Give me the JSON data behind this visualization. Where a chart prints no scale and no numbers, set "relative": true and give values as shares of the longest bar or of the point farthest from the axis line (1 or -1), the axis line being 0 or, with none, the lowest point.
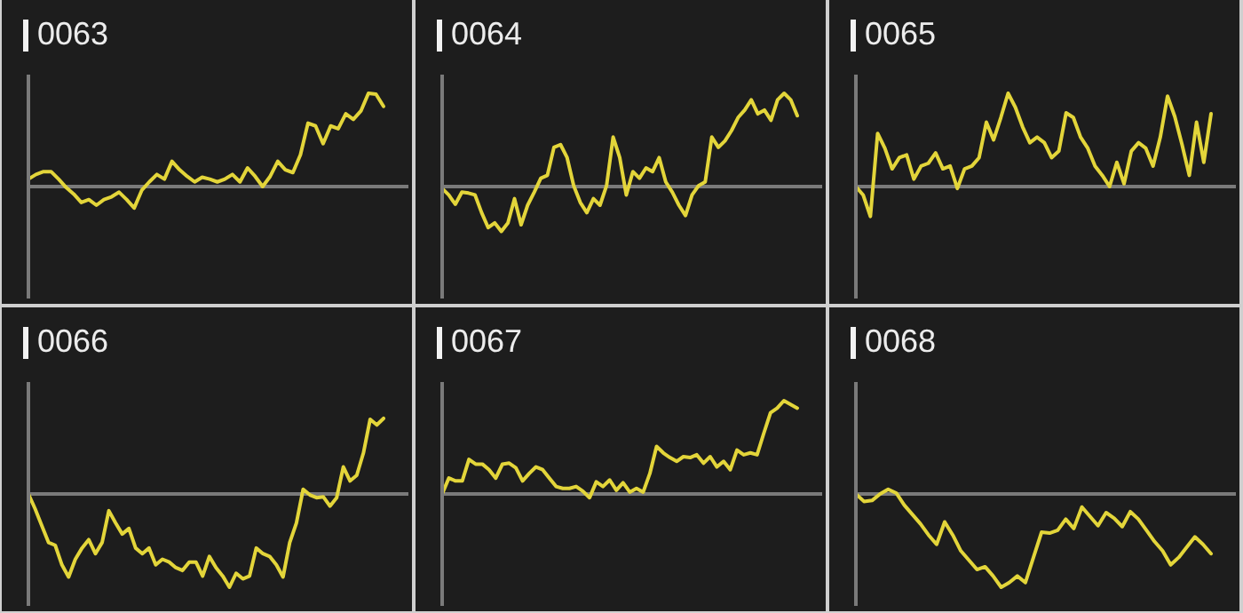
{
  "chart_data": [
    {
      "type": "line",
      "title": "0063",
      "relative": true,
      "color": "#e3d53a",
      "categories": [
        null,
        null,
        null,
        null,
        null,
        null,
        null,
        null,
        null,
        null,
        null,
        null,
        null,
        null,
        null,
        null,
        null,
        null,
        null,
        null,
        null,
        null,
        null,
        null,
        null,
        null,
        null,
        null,
        null,
        null,
        null,
        null,
        null,
        null,
        null,
        null,
        null,
        null,
        null,
        null,
        null,
        null,
        null,
        null,
        null,
        null,
        null,
        null
      ],
      "values": [
        0.08,
        0.13,
        0.16,
        0.16,
        0.08,
        -0.01,
        -0.08,
        -0.17,
        -0.14,
        -0.2,
        -0.14,
        -0.11,
        -0.06,
        -0.14,
        -0.23,
        -0.04,
        0.05,
        0.13,
        0.08,
        0.27,
        0.18,
        0.11,
        0.05,
        0.1,
        0.08,
        0.05,
        0.08,
        0.13,
        0.05,
        0.2,
        0.11,
        0,
        0.11,
        0.27,
        0.18,
        0.15,
        0.34,
        0.68,
        0.65,
        0.46,
        0.65,
        0.62,
        0.78,
        0.72,
        0.81,
        1,
        0.99,
        0.86
      ]
    },
    {
      "type": "line",
      "title": "0064",
      "relative": true,
      "color": "#e3d53a",
      "categories": [
        null,
        null,
        null,
        null,
        null,
        null,
        null,
        null,
        null,
        null,
        null,
        null,
        null,
        null,
        null,
        null,
        null,
        null,
        null,
        null,
        null,
        null,
        null,
        null,
        null,
        null,
        null,
        null,
        null,
        null,
        null,
        null,
        null,
        null,
        null,
        null,
        null,
        null,
        null,
        null,
        null,
        null,
        null,
        null,
        null,
        null,
        null,
        null,
        null,
        null,
        null,
        null,
        null,
        null,
        null
      ],
      "values": [
        -0.02,
        -0.09,
        -0.19,
        -0.06,
        -0.07,
        -0.09,
        -0.28,
        -0.44,
        -0.39,
        -0.48,
        -0.39,
        -0.13,
        -0.41,
        -0.2,
        -0.06,
        0.09,
        0.12,
        0.42,
        0.45,
        0.31,
        0.01,
        -0.17,
        -0.28,
        -0.13,
        -0.2,
        0.01,
        0.53,
        0.31,
        -0.09,
        0.16,
        0.09,
        0.2,
        0.16,
        0.31,
        0.05,
        -0.06,
        -0.2,
        -0.31,
        -0.09,
        0.01,
        0.05,
        0.53,
        0.42,
        0.49,
        0.6,
        0.74,
        0.82,
        0.93,
        0.78,
        0.82,
        0.71,
        0.93,
        1,
        0.93,
        0.76
      ]
    },
    {
      "type": "line",
      "title": "0065",
      "relative": true,
      "color": "#e3d53a",
      "categories": [
        null,
        null,
        null,
        null,
        null,
        null,
        null,
        null,
        null,
        null,
        null,
        null,
        null,
        null,
        null,
        null,
        null,
        null,
        null,
        null,
        null,
        null,
        null,
        null,
        null,
        null,
        null,
        null,
        null,
        null,
        null,
        null,
        null,
        null,
        null,
        null,
        null,
        null,
        null,
        null,
        null,
        null,
        null,
        null,
        null,
        null,
        null,
        null,
        null,
        null
      ],
      "values": [
        0,
        -0.09,
        -0.32,
        0.57,
        0.41,
        0.19,
        0.31,
        0.34,
        0.08,
        0.22,
        0.25,
        0.36,
        0.19,
        0.22,
        -0.02,
        0.19,
        0.22,
        0.31,
        0.69,
        0.5,
        0.74,
        1,
        0.85,
        0.64,
        0.47,
        0.53,
        0.47,
        0.31,
        0.38,
        0.79,
        0.74,
        0.53,
        0.41,
        0.22,
        0.12,
        0,
        0.26,
        0.03,
        0.38,
        0.47,
        0.41,
        0.22,
        0.53,
        0.97,
        0.75,
        0.45,
        0.12,
        0.69,
        0.26,
        0.78
      ]
    },
    {
      "type": "line",
      "title": "0066",
      "relative": true,
      "color": "#e3d53a",
      "categories": [
        null,
        null,
        null,
        null,
        null,
        null,
        null,
        null,
        null,
        null,
        null,
        null,
        null,
        null,
        null,
        null,
        null,
        null,
        null,
        null,
        null,
        null,
        null,
        null,
        null,
        null,
        null,
        null,
        null,
        null,
        null,
        null,
        null,
        null,
        null,
        null,
        null,
        null,
        null,
        null,
        null,
        null,
        null,
        null,
        null,
        null,
        null,
        null,
        null,
        null,
        null,
        null,
        null,
        null
      ],
      "values": [
        0,
        -0.16,
        -0.34,
        -0.52,
        -0.55,
        -0.76,
        -0.89,
        -0.7,
        -0.58,
        -0.49,
        -0.64,
        -0.52,
        -0.18,
        -0.31,
        -0.43,
        -0.37,
        -0.58,
        -0.64,
        -0.58,
        -0.76,
        -0.7,
        -0.73,
        -0.79,
        -0.82,
        -0.73,
        -0.73,
        -0.88,
        -0.67,
        -0.79,
        -0.88,
        -1,
        -0.85,
        -0.91,
        -0.88,
        -0.58,
        -0.64,
        -0.67,
        -0.76,
        -0.89,
        -0.52,
        -0.31,
        0.05,
        -0.01,
        -0.04,
        -0.03,
        -0.13,
        -0.04,
        0.29,
        0.14,
        0.2,
        0.44,
        0.8,
        0.74,
        0.81
      ]
    },
    {
      "type": "line",
      "title": "0067",
      "relative": true,
      "color": "#e3d53a",
      "categories": [
        null,
        null,
        null,
        null,
        null,
        null,
        null,
        null,
        null,
        null,
        null,
        null,
        null,
        null,
        null,
        null,
        null,
        null,
        null,
        null,
        null,
        null,
        null,
        null,
        null,
        null,
        null,
        null,
        null,
        null,
        null,
        null,
        null,
        null,
        null,
        null,
        null,
        null,
        null,
        null,
        null,
        null,
        null,
        null,
        null,
        null,
        null,
        null,
        null,
        null,
        null,
        null,
        null,
        null
      ],
      "values": [
        0,
        0.17,
        0.14,
        0.14,
        0.37,
        0.32,
        0.32,
        0.26,
        0.17,
        0.32,
        0.33,
        0.28,
        0.14,
        0.22,
        0.29,
        0.26,
        0.17,
        0.08,
        0.06,
        0.06,
        0.08,
        0.03,
        -0.04,
        0.13,
        0.08,
        0.15,
        0.04,
        0.12,
        0.02,
        0.06,
        0.02,
        0.22,
        0.51,
        0.44,
        0.39,
        0.35,
        0.4,
        0.39,
        0.42,
        0.33,
        0.4,
        0.29,
        0.35,
        0.26,
        0.47,
        0.42,
        0.44,
        0.42,
        0.65,
        0.87,
        0.92,
        1,
        0.96,
        0.92
      ]
    },
    {
      "type": "line",
      "title": "0068",
      "relative": true,
      "color": "#e3d53a",
      "categories": [
        null,
        null,
        null,
        null,
        null,
        null,
        null,
        null,
        null,
        null,
        null,
        null,
        null,
        null,
        null,
        null,
        null,
        null,
        null,
        null,
        null,
        null,
        null,
        null,
        null,
        null,
        null,
        null,
        null,
        null,
        null,
        null,
        null,
        null,
        null,
        null,
        null,
        null,
        null,
        null,
        null,
        null,
        null,
        null,
        null
      ],
      "values": [
        0,
        -0.08,
        -0.07,
        0,
        0.05,
        0.01,
        -0.12,
        -0.22,
        -0.32,
        -0.44,
        -0.54,
        -0.3,
        -0.44,
        -0.61,
        -0.71,
        -0.81,
        -0.78,
        -0.88,
        -1,
        -0.95,
        -0.88,
        -0.95,
        -0.68,
        -0.41,
        -0.42,
        -0.39,
        -0.27,
        -0.37,
        -0.14,
        -0.24,
        -0.34,
        -0.2,
        -0.26,
        -0.35,
        -0.19,
        -0.27,
        -0.39,
        -0.51,
        -0.61,
        -0.76,
        -0.68,
        -0.57,
        -0.46,
        -0.54,
        -0.64
      ]
    }
  ]
}
